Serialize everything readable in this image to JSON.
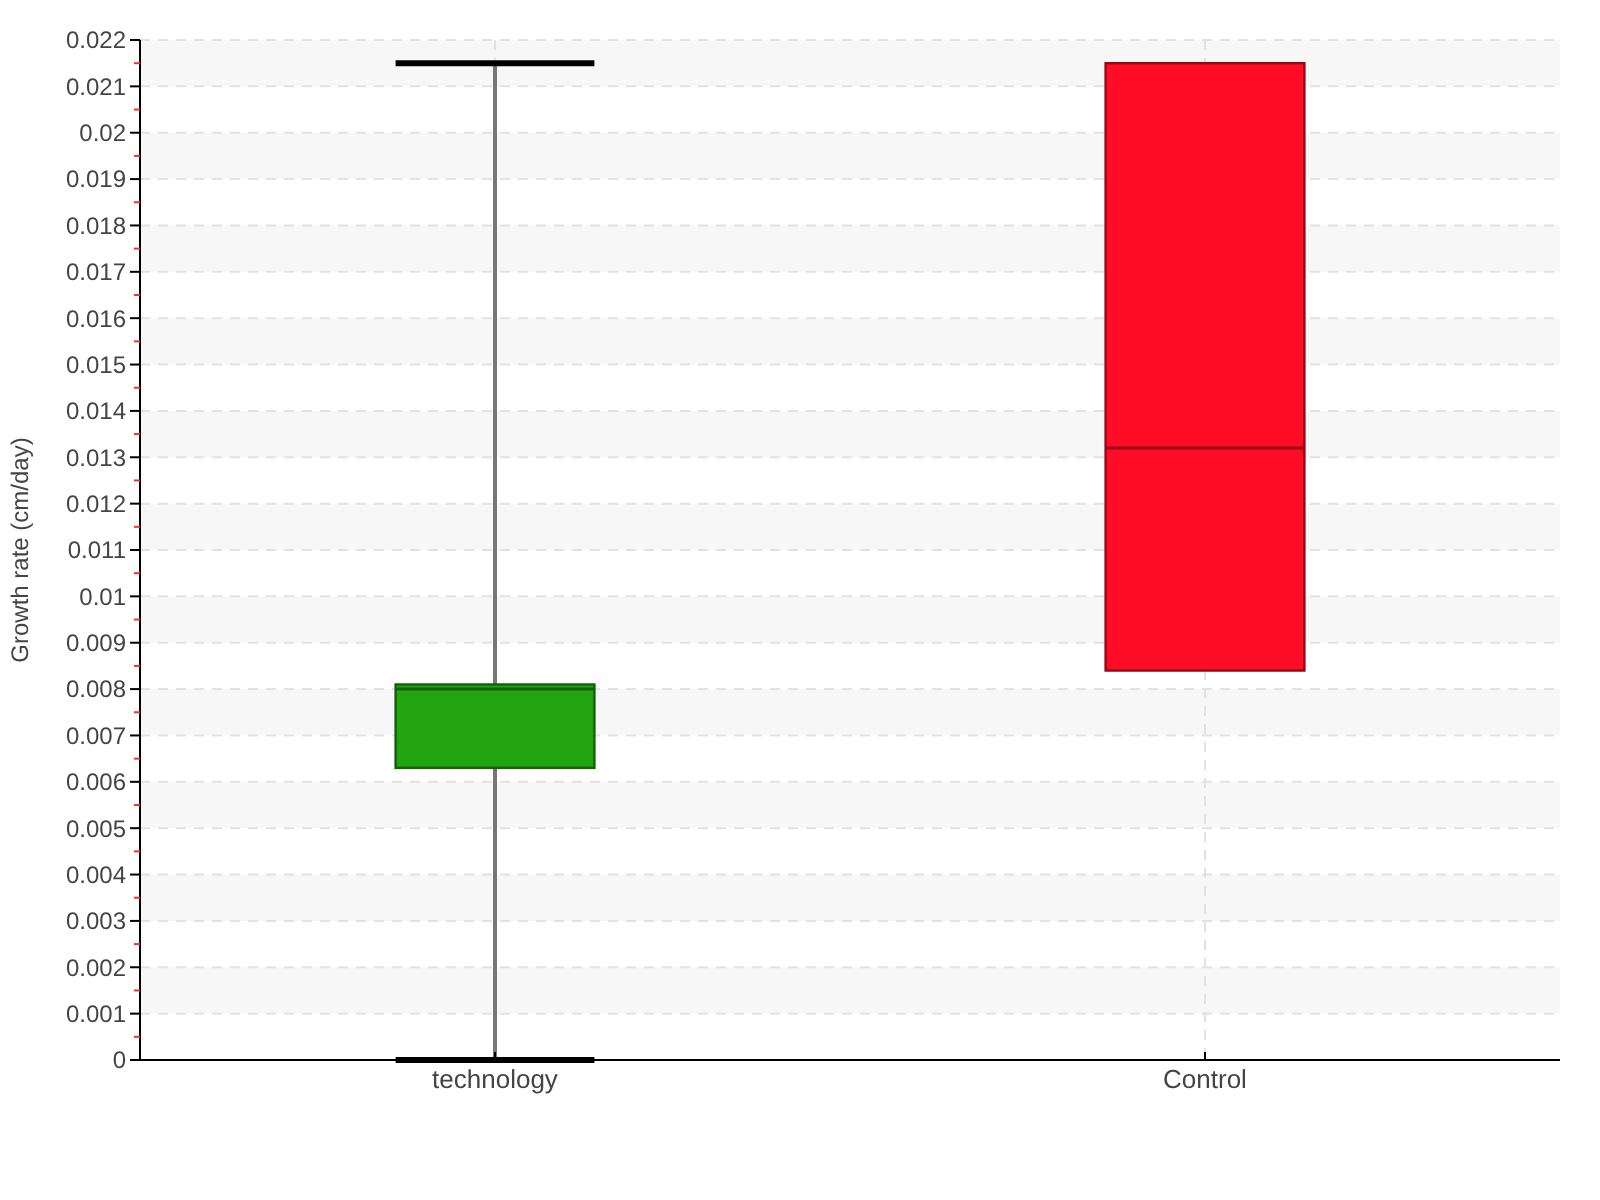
{
  "chart_data": {
    "type": "box",
    "ylabel": "Growth rate (cm/day)",
    "categories": [
      "technology",
      "Control"
    ],
    "series": [
      {
        "colors": [
          "#21a40f",
          "#ff0d26"
        ],
        "boxes": [
          {
            "low": 0,
            "q1": 0.0063,
            "median": 0.008,
            "q3": 0.0081,
            "high": 0.0215
          },
          {
            "low": 0.0084,
            "q1": 0.0084,
            "median": 0.0132,
            "q3": 0.0215,
            "high": 0.0215
          }
        ]
      }
    ],
    "ylim": [
      0,
      0.022
    ],
    "yticks": [
      0,
      {
        "value": 0.0005,
        "label": null
      },
      0.001,
      {
        "value": 0.0015,
        "label": null
      },
      0.002,
      {
        "value": 0.0025,
        "label": null
      },
      0.003,
      {
        "value": 0.0035,
        "label": null
      },
      0.004,
      {
        "value": 0.0045,
        "label": null
      },
      0.005,
      {
        "value": 0.0055,
        "label": null
      },
      0.006,
      {
        "value": 0.0065,
        "label": null
      },
      0.007,
      {
        "value": 0.0075,
        "label": null
      },
      0.008,
      {
        "value": 0.0085,
        "label": null
      },
      0.009,
      {
        "value": 0.0095,
        "label": null
      },
      0.01,
      {
        "value": 0.0105,
        "label": null
      },
      0.011,
      {
        "value": 0.0115,
        "label": null
      },
      0.012,
      {
        "value": 0.0125,
        "label": null
      },
      0.013,
      {
        "value": 0.0135,
        "label": null
      },
      0.014,
      {
        "value": 0.0145,
        "label": null
      },
      0.015,
      {
        "value": 0.0155,
        "label": null
      },
      0.016,
      {
        "value": 0.0165,
        "label": null
      },
      0.017,
      {
        "value": 0.0175,
        "label": null
      },
      0.018,
      {
        "value": 0.0185,
        "label": null
      },
      0.019,
      {
        "value": 0.0195,
        "label": null
      },
      0.02,
      {
        "value": 0.0205,
        "label": null
      },
      0.021,
      {
        "value": 0.0215,
        "label": null
      },
      0.022
    ],
    "grid": true
  }
}
